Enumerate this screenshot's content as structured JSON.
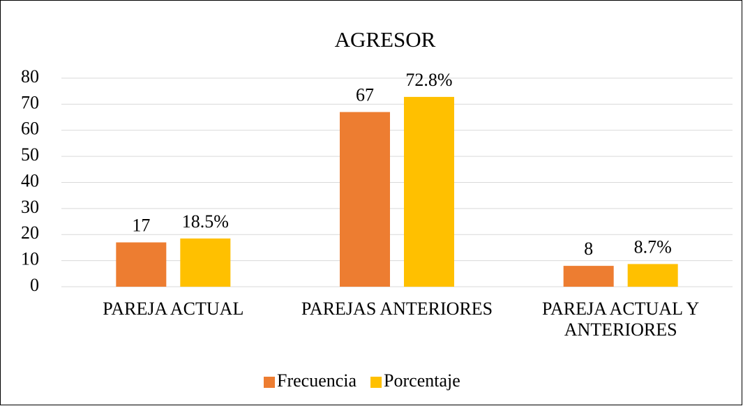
{
  "chart_data": {
    "type": "bar",
    "title": "AGRESOR",
    "categories": [
      "PAREJA ACTUAL",
      "PAREJAS ANTERIORES",
      "PAREJA ACTUAL Y ANTERIORES"
    ],
    "series": [
      {
        "name": "Frecuencia",
        "color": "#ED7D31",
        "values": [
          17,
          67,
          8
        ]
      },
      {
        "name": "Porcentaje",
        "color": "#FFC000",
        "values": [
          18.5,
          72.8,
          8.7
        ],
        "value_labels": [
          "18.5%",
          "72.8%",
          "8.7%"
        ]
      }
    ],
    "ylim": [
      0,
      80
    ],
    "yticks": [
      0,
      10,
      20,
      30,
      40,
      50,
      60,
      70,
      80
    ],
    "grid": true,
    "legend": "bottom"
  }
}
